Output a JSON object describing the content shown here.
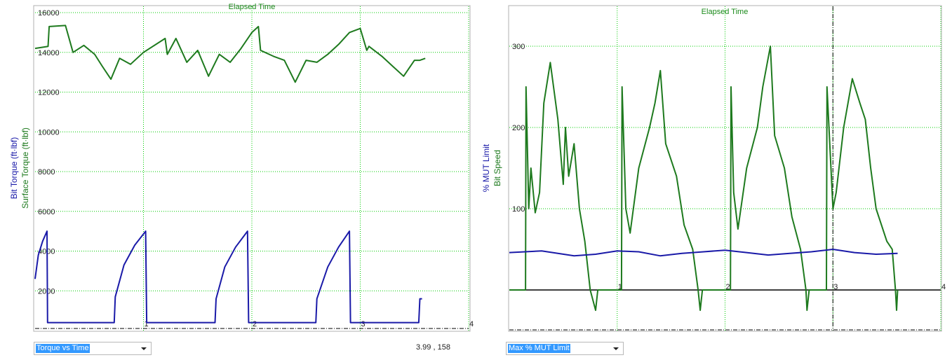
{
  "colors": {
    "plot_bg": "#ffffff",
    "grid": "#00cc00",
    "title": "#1a8a1a",
    "surface": "#1e7a1e",
    "bit": "#1a1aa8",
    "axis": "#000000",
    "frame": "#b0b0b0"
  },
  "charts": [
    {
      "id": "left",
      "title": "Elapsed Time",
      "y_label_blue": "Bit Torque (ft·lbf)",
      "y_label_green": "Surface Torque (ft·lbf)",
      "x_tick_labels": [
        "1",
        "2",
        "3",
        "4"
      ],
      "y_tick_labels": [
        "2000",
        "4000",
        "6000",
        "8000",
        "10000",
        "12000",
        "14000",
        "16000"
      ],
      "dropdown_label": "Torque  vs  Time",
      "cursor_readout": "3.99 , 158"
    },
    {
      "id": "right",
      "title": "Elapsed Time",
      "y_label_blue": "% MUT Limit",
      "y_label_green": "Bit Speed",
      "x_tick_labels": [
        "1",
        "2",
        "3",
        "4"
      ],
      "y_tick_labels": [
        "100",
        "200",
        "300"
      ],
      "dropdown_label": "Max % MUT Limit"
    }
  ],
  "chart_data": [
    {
      "type": "line",
      "title": "Elapsed Time",
      "xlabel": "",
      "ylabel": "Bit Torque (ft·lbf) / Surface Torque (ft·lbf)",
      "xlim": [
        0,
        4
      ],
      "ylim": [
        0,
        16000
      ],
      "x_ticks": [
        1,
        2,
        3,
        4
      ],
      "y_ticks": [
        2000,
        4000,
        6000,
        8000,
        10000,
        12000,
        14000,
        16000
      ],
      "grid": true,
      "series": [
        {
          "name": "Surface Torque (ft·lbf)",
          "color": "#1e7a1e",
          "x": [
            0,
            0.12,
            0.13,
            0.28,
            0.35,
            0.45,
            0.55,
            0.62,
            0.7,
            0.78,
            0.88,
            1.0,
            1.2,
            1.22,
            1.3,
            1.4,
            1.5,
            1.6,
            1.7,
            1.8,
            1.9,
            2.0,
            2.06,
            2.08,
            2.2,
            2.3,
            2.4,
            2.5,
            2.6,
            2.7,
            2.8,
            2.9,
            3.0,
            3.06,
            3.08,
            3.2,
            3.3,
            3.4,
            3.5,
            3.55,
            3.6
          ],
          "values": [
            14200,
            14300,
            15300,
            15350,
            14000,
            14350,
            13900,
            13300,
            12650,
            13700,
            13400,
            14000,
            14700,
            13900,
            14700,
            13500,
            14100,
            12800,
            13900,
            13500,
            14200,
            15000,
            15300,
            14100,
            13800,
            13600,
            12500,
            13600,
            13500,
            13900,
            14400,
            15000,
            15200,
            14100,
            14300,
            13800,
            13300,
            12800,
            13600,
            13600,
            13700
          ]
        },
        {
          "name": "Bit Torque (ft·lbf)",
          "color": "#1a1aa8",
          "x": [
            0,
            0.03,
            0.07,
            0.11,
            0.115,
            0.73,
            0.74,
            0.82,
            0.92,
            1.02,
            1.03,
            1.66,
            1.67,
            1.75,
            1.85,
            1.96,
            1.97,
            2.59,
            2.6,
            2.7,
            2.8,
            2.9,
            2.91,
            3.54,
            3.55,
            3.57
          ],
          "values": [
            2600,
            3800,
            4500,
            5000,
            400,
            400,
            1700,
            3300,
            4300,
            5000,
            400,
            400,
            1600,
            3200,
            4200,
            5000,
            400,
            400,
            1600,
            3200,
            4200,
            5000,
            400,
            400,
            1600,
            1600
          ]
        }
      ]
    },
    {
      "type": "line",
      "title": "Elapsed Time",
      "xlabel": "",
      "ylabel": "% MUT Limit / Bit Speed",
      "xlim": [
        0,
        4
      ],
      "ylim": [
        -50,
        350
      ],
      "x_ticks": [
        1,
        2,
        3,
        4
      ],
      "y_ticks": [
        100,
        200,
        300
      ],
      "grid": true,
      "series": [
        {
          "name": "Bit Speed",
          "color": "#1e7a1e",
          "x": [
            0,
            0.15,
            0.155,
            0.18,
            0.2,
            0.24,
            0.28,
            0.32,
            0.38,
            0.45,
            0.5,
            0.52,
            0.55,
            0.6,
            0.65,
            0.7,
            0.75,
            0.8,
            0.82,
            0.84,
            0.9,
            1.0,
            1.04,
            1.045,
            1.08,
            1.12,
            1.2,
            1.3,
            1.35,
            1.4,
            1.45,
            1.55,
            1.62,
            1.7,
            1.75,
            1.77,
            1.79,
            1.8,
            1.9,
            2.0,
            2.05,
            2.055,
            2.08,
            2.12,
            2.2,
            2.3,
            2.35,
            2.42,
            2.46,
            2.55,
            2.62,
            2.7,
            2.75,
            2.76,
            2.78,
            2.8,
            2.9,
            2.94,
            2.945,
            3.0,
            3.03,
            3.1,
            3.18,
            3.25,
            3.3,
            3.35,
            3.4,
            3.5,
            3.55,
            3.58,
            3.59,
            3.6
          ],
          "values": [
            0,
            0,
            250,
            100,
            150,
            95,
            120,
            230,
            280,
            210,
            130,
            200,
            140,
            180,
            100,
            60,
            0,
            -25,
            0,
            0,
            0,
            0,
            0,
            250,
            100,
            70,
            150,
            200,
            230,
            270,
            180,
            140,
            80,
            50,
            0,
            -25,
            0,
            0,
            0,
            0,
            0,
            250,
            120,
            75,
            150,
            200,
            250,
            300,
            190,
            150,
            90,
            50,
            0,
            -25,
            0,
            0,
            0,
            0,
            250,
            100,
            120,
            200,
            260,
            230,
            210,
            150,
            100,
            60,
            50,
            0,
            -25,
            0
          ]
        },
        {
          "name": "% MUT Limit",
          "color": "#1a1aa8",
          "x": [
            0,
            0.3,
            0.6,
            0.8,
            1.0,
            1.2,
            1.4,
            1.6,
            1.8,
            2.0,
            2.2,
            2.4,
            2.6,
            2.8,
            3.0,
            3.2,
            3.4,
            3.6
          ],
          "values": [
            46,
            48,
            42,
            44,
            48,
            47,
            42,
            45,
            47,
            49,
            46,
            43,
            45,
            47,
            50,
            46,
            44,
            45
          ]
        }
      ]
    }
  ]
}
